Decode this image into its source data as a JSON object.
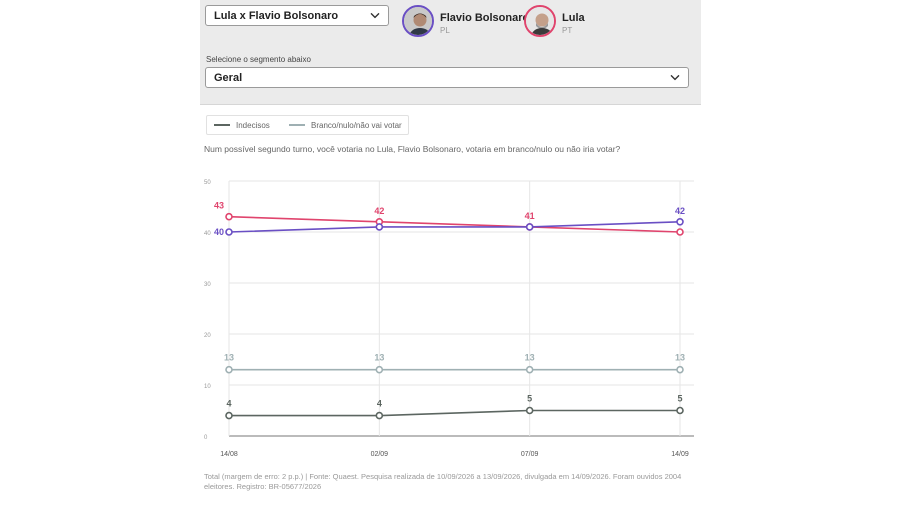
{
  "selector": {
    "value": "Lula x Flavio Bolsonaro"
  },
  "candidates": [
    {
      "name": "Flavio Bolsonaro",
      "party": "PL",
      "color": "#6a4fc4"
    },
    {
      "name": "Lula",
      "party": "PT",
      "color": "#e0446d"
    }
  ],
  "segment": {
    "label": "Selecione o segmento abaixo",
    "value": "Geral"
  },
  "legend": [
    {
      "name": "Indecisos",
      "color": "#5c6661"
    },
    {
      "name": "Branco/nulo/não vai votar",
      "color": "#9fb0b3"
    }
  ],
  "question": "Num possível segundo turno, você votaria no Lula, Flavio Bolsonaro, votaria em branco/nulo ou não iria votar?",
  "footnote": "Total (margem de erro: 2 p.p.) | Fonte: Quaest. Pesquisa realizada de 10/09/2026 a 13/09/2026, divulgada em 14/09/2026. Foram ouvidos 2004 eleitores. Registro: BR-05677/2026",
  "chart_data": {
    "type": "line",
    "categories": [
      "14/08",
      "02/09",
      "07/09",
      "14/09"
    ],
    "ylim": [
      0,
      50
    ],
    "yticks": [
      0,
      10,
      20,
      30,
      40,
      50
    ],
    "grid": true,
    "series": [
      {
        "name": "Lula",
        "color": "#e0446d",
        "values": [
          43,
          42,
          41,
          40
        ],
        "labels": [
          "43",
          "42",
          "41",
          ""
        ]
      },
      {
        "name": "Flavio Bolsonaro",
        "color": "#6a4fc4",
        "values": [
          40,
          41,
          41,
          42
        ],
        "labels": [
          "40",
          "",
          "",
          "42"
        ]
      },
      {
        "name": "Branco/nulo/não vai votar",
        "color": "#9fb0b3",
        "values": [
          13,
          13,
          13,
          13
        ],
        "labels": [
          "13",
          "13",
          "13",
          "13"
        ]
      },
      {
        "name": "Indecisos",
        "color": "#5c6661",
        "values": [
          4,
          4,
          5,
          5
        ],
        "labels": [
          "4",
          "4",
          "5",
          "5"
        ]
      }
    ]
  }
}
